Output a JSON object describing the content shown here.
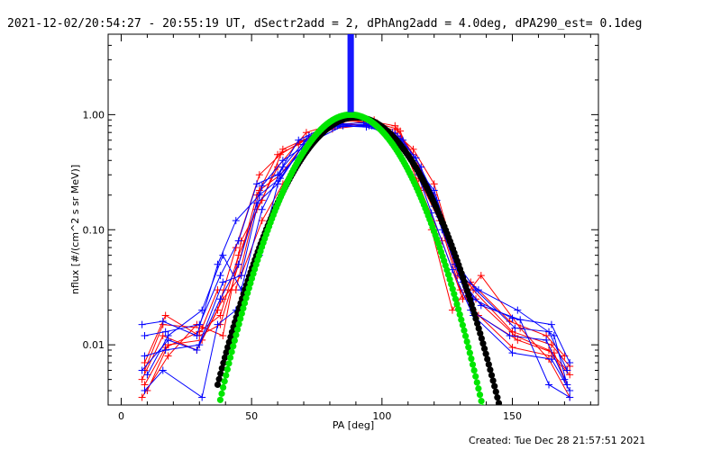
{
  "chart_data": {
    "type": "line",
    "title": "2021-12-02/20:54:27 - 20:55:19 UT, dSectr2add = 2, dPhAng2add = 4.0deg, dPA290_est=  0.1deg",
    "xlabel": "PA [deg]",
    "ylabel": "nflux [#/(cm^2 s sr MeV)]",
    "footer": "Created: Tue Dec 28 21:57:51 2021",
    "xlim": [
      -5,
      183
    ],
    "ylim": [
      0.003,
      5
    ],
    "yscale": "log",
    "grid": false,
    "x_ticks": [
      {
        "value": 0,
        "label": "0"
      },
      {
        "value": 50,
        "label": "50"
      },
      {
        "value": 100,
        "label": "100"
      },
      {
        "value": 150,
        "label": "150"
      }
    ],
    "y_ticks": [
      {
        "value": 0.01,
        "label": "0.01"
      },
      {
        "value": 0.1,
        "label": "0.10"
      },
      {
        "value": 1,
        "label": "1.00"
      }
    ],
    "colors": {
      "red_series": "#ff0000",
      "blue_series": "#0000ff",
      "black_fit": "#000000",
      "green_fit": "#00e600",
      "axes": "#000000"
    },
    "vertical_marker": {
      "x": 88,
      "color": "#0000ff"
    },
    "series": [
      {
        "color": "red",
        "marker": "plus",
        "points": [
          [
            9,
            0.007
          ],
          [
            17,
            0.018
          ],
          [
            30,
            0.012
          ],
          [
            38,
            0.015
          ],
          [
            45,
            0.05
          ],
          [
            52,
            0.2
          ],
          [
            60,
            0.45
          ],
          [
            68,
            0.55
          ],
          [
            80,
            0.85
          ],
          [
            93,
            0.9
          ],
          [
            105,
            0.8
          ],
          [
            112,
            0.45
          ],
          [
            120,
            0.2
          ],
          [
            128,
            0.05
          ],
          [
            135,
            0.03
          ],
          [
            150,
            0.013
          ],
          [
            165,
            0.01
          ],
          [
            172,
            0.0065
          ]
        ]
      },
      {
        "color": "red",
        "marker": "plus",
        "points": [
          [
            8,
            0.005
          ],
          [
            16,
            0.012
          ],
          [
            29,
            0.009
          ],
          [
            37,
            0.02
          ],
          [
            44,
            0.07
          ],
          [
            53,
            0.3
          ],
          [
            61,
            0.45
          ],
          [
            70,
            0.6
          ],
          [
            82,
            0.8
          ],
          [
            95,
            0.88
          ],
          [
            106,
            0.75
          ],
          [
            113,
            0.35
          ],
          [
            121,
            0.15
          ],
          [
            129,
            0.04
          ],
          [
            136,
            0.025
          ],
          [
            151,
            0.012
          ],
          [
            164,
            0.009
          ],
          [
            171,
            0.006
          ]
        ]
      },
      {
        "color": "red",
        "marker": "plus",
        "points": [
          [
            10,
            0.004
          ],
          [
            18,
            0.01
          ],
          [
            31,
            0.011
          ],
          [
            39,
            0.025
          ],
          [
            46,
            0.04
          ],
          [
            54,
            0.12
          ],
          [
            62,
            0.25
          ],
          [
            72,
            0.6
          ],
          [
            84,
            0.9
          ],
          [
            96,
            0.85
          ],
          [
            104,
            0.6
          ],
          [
            111,
            0.3
          ],
          [
            119,
            0.1
          ],
          [
            127,
            0.02
          ],
          [
            134,
            0.035
          ],
          [
            149,
            0.016
          ],
          [
            163,
            0.012
          ],
          [
            170,
            0.008
          ]
        ]
      },
      {
        "color": "red",
        "marker": "plus",
        "points": [
          [
            9,
            0.0045
          ],
          [
            17,
            0.0095
          ],
          [
            30,
            0.013
          ],
          [
            38,
            0.018
          ],
          [
            45,
            0.06
          ],
          [
            52,
            0.15
          ],
          [
            60,
            0.35
          ],
          [
            71,
            0.7
          ],
          [
            83,
            0.85
          ],
          [
            94,
            0.8
          ],
          [
            105,
            0.7
          ],
          [
            112,
            0.5
          ],
          [
            120,
            0.25
          ],
          [
            128,
            0.06
          ],
          [
            135,
            0.02
          ],
          [
            150,
            0.0095
          ],
          [
            165,
            0.008
          ],
          [
            172,
            0.0055
          ]
        ]
      },
      {
        "color": "red",
        "marker": "plus",
        "points": [
          [
            9,
            0.006
          ],
          [
            16,
            0.015
          ],
          [
            31,
            0.014
          ],
          [
            37,
            0.03
          ],
          [
            44,
            0.03
          ],
          [
            53,
            0.22
          ],
          [
            61,
            0.3
          ],
          [
            70,
            0.55
          ],
          [
            81,
            0.75
          ],
          [
            95,
            0.82
          ],
          [
            107,
            0.72
          ],
          [
            114,
            0.28
          ],
          [
            122,
            0.12
          ],
          [
            130,
            0.03
          ],
          [
            137,
            0.018
          ],
          [
            152,
            0.011
          ],
          [
            166,
            0.0085
          ],
          [
            171,
            0.0045
          ]
        ]
      },
      {
        "color": "red",
        "marker": "plus",
        "points": [
          [
            8,
            0.0035
          ],
          [
            18,
            0.008
          ],
          [
            29,
            0.015
          ],
          [
            39,
            0.012
          ],
          [
            46,
            0.08
          ],
          [
            54,
            0.18
          ],
          [
            62,
            0.5
          ],
          [
            73,
            0.65
          ],
          [
            85,
            0.88
          ],
          [
            97,
            0.9
          ],
          [
            108,
            0.55
          ],
          [
            115,
            0.22
          ],
          [
            123,
            0.08
          ],
          [
            131,
            0.025
          ],
          [
            138,
            0.04
          ],
          [
            153,
            0.014
          ],
          [
            164,
            0.0075
          ],
          [
            172,
            0.0035
          ]
        ]
      },
      {
        "color": "blue",
        "marker": "plus",
        "points": [
          [
            9,
            0.012
          ],
          [
            17,
            0.013
          ],
          [
            30,
            0.015
          ],
          [
            38,
            0.04
          ],
          [
            45,
            0.08
          ],
          [
            52,
            0.25
          ],
          [
            60,
            0.3
          ],
          [
            68,
            0.6
          ],
          [
            80,
            0.82
          ],
          [
            93,
            0.85
          ],
          [
            105,
            0.6
          ],
          [
            112,
            0.38
          ],
          [
            120,
            0.22
          ],
          [
            128,
            0.06
          ],
          [
            135,
            0.025
          ],
          [
            150,
            0.017
          ],
          [
            165,
            0.015
          ],
          [
            172,
            0.007
          ]
        ]
      },
      {
        "color": "blue",
        "marker": "plus",
        "points": [
          [
            8,
            0.015
          ],
          [
            16,
            0.016
          ],
          [
            29,
            0.012
          ],
          [
            37,
            0.05
          ],
          [
            44,
            0.12
          ],
          [
            53,
            0.2
          ],
          [
            61,
            0.28
          ],
          [
            70,
            0.55
          ],
          [
            82,
            0.78
          ],
          [
            95,
            0.8
          ],
          [
            106,
            0.65
          ],
          [
            113,
            0.42
          ],
          [
            121,
            0.18
          ],
          [
            129,
            0.05
          ],
          [
            136,
            0.03
          ],
          [
            151,
            0.014
          ],
          [
            164,
            0.013
          ],
          [
            171,
            0.006
          ]
        ]
      },
      {
        "color": "blue",
        "marker": "plus",
        "points": [
          [
            10,
            0.0055
          ],
          [
            18,
            0.012
          ],
          [
            31,
            0.02
          ],
          [
            39,
            0.06
          ],
          [
            46,
            0.03
          ],
          [
            54,
            0.15
          ],
          [
            62,
            0.35
          ],
          [
            72,
            0.65
          ],
          [
            84,
            0.82
          ],
          [
            96,
            0.8
          ],
          [
            104,
            0.7
          ],
          [
            111,
            0.45
          ],
          [
            119,
            0.14
          ],
          [
            127,
            0.045
          ],
          [
            134,
            0.02
          ],
          [
            149,
            0.012
          ],
          [
            163,
            0.011
          ],
          [
            170,
            0.005
          ]
        ]
      },
      {
        "color": "blue",
        "marker": "plus",
        "points": [
          [
            9,
            0.008
          ],
          [
            17,
            0.009
          ],
          [
            30,
            0.01
          ],
          [
            38,
            0.025
          ],
          [
            45,
            0.05
          ],
          [
            52,
            0.17
          ],
          [
            60,
            0.25
          ],
          [
            71,
            0.6
          ],
          [
            83,
            0.8
          ],
          [
            94,
            0.78
          ],
          [
            105,
            0.68
          ],
          [
            112,
            0.4
          ],
          [
            120,
            0.16
          ],
          [
            128,
            0.05
          ],
          [
            135,
            0.018
          ],
          [
            150,
            0.0085
          ],
          [
            165,
            0.0075
          ],
          [
            172,
            0.004
          ]
        ]
      },
      {
        "color": "blue",
        "marker": "plus",
        "points": [
          [
            9,
            0.004
          ],
          [
            16,
            0.006
          ],
          [
            31,
            0.0035
          ],
          [
            37,
            0.015
          ],
          [
            44,
            0.02
          ],
          [
            53,
            0.06
          ],
          [
            61,
            0.3
          ],
          [
            70,
            0.5
          ],
          [
            81,
            0.78
          ],
          [
            95,
            0.83
          ],
          [
            107,
            0.62
          ],
          [
            114,
            0.3
          ],
          [
            122,
            0.13
          ],
          [
            130,
            0.04
          ],
          [
            137,
            0.03
          ],
          [
            152,
            0.02
          ],
          [
            166,
            0.012
          ],
          [
            171,
            0.0045
          ]
        ]
      },
      {
        "color": "blue",
        "marker": "plus",
        "points": [
          [
            8,
            0.006
          ],
          [
            18,
            0.011
          ],
          [
            29,
            0.009
          ],
          [
            39,
            0.035
          ],
          [
            46,
            0.04
          ],
          [
            54,
            0.24
          ],
          [
            62,
            0.4
          ],
          [
            73,
            0.58
          ],
          [
            85,
            0.8
          ],
          [
            97,
            0.84
          ],
          [
            108,
            0.6
          ],
          [
            115,
            0.35
          ],
          [
            123,
            0.1
          ],
          [
            131,
            0.035
          ],
          [
            138,
            0.022
          ],
          [
            153,
            0.0165
          ],
          [
            164,
            0.0045
          ],
          [
            172,
            0.0035
          ]
        ]
      }
    ],
    "fits": [
      {
        "color": "black",
        "marker": "dot",
        "x_start": 37,
        "x_end": 146,
        "peak_x": 90,
        "peak_y": 0.95,
        "width": 16.2
      },
      {
        "color": "green",
        "marker": "dot",
        "x_start": 38,
        "x_end": 140,
        "peak_x": 88,
        "peak_y": 1.0,
        "width": 14.8
      }
    ]
  }
}
